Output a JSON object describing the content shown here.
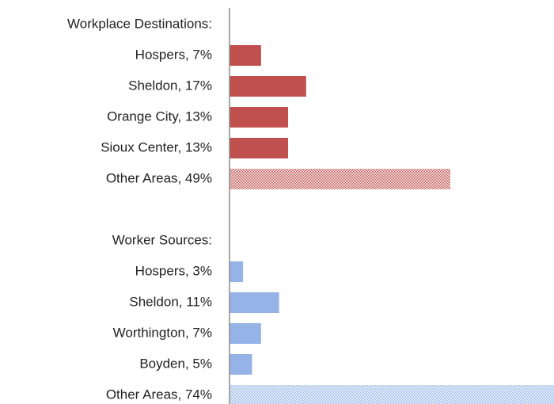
{
  "chart_data": {
    "type": "barh",
    "categories": [
      "Workplace Destinations:",
      "Hospers, 7%",
      "Sheldon, 17%",
      "Orange City, 13%",
      "Sioux Center, 13%",
      "Other Areas, 49%",
      null,
      "Worker Sources:",
      "Hospers, 3%",
      "Sheldon, 11%",
      "Worthington, 7%",
      "Boyden, 5%",
      "Other Areas, 74%"
    ],
    "values": [
      null,
      7,
      17,
      13,
      13,
      49,
      null,
      null,
      3,
      11,
      7,
      5,
      74
    ],
    "colors": [
      null,
      "#c0504d",
      "#c0504d",
      "#c0504d",
      "#c0504d",
      "#c0504d",
      null,
      null,
      "#95b3e7",
      "#95b3e7",
      "#95b3e7",
      "#95b3e7",
      "#95b3e7"
    ],
    "hatched": [
      false,
      false,
      false,
      false,
      false,
      true,
      false,
      false,
      false,
      false,
      false,
      false,
      true
    ],
    "xlim": [
      0,
      72
    ]
  }
}
